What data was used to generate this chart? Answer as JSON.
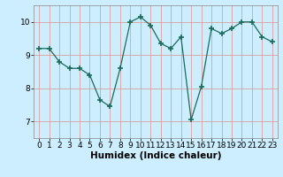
{
  "x": [
    0,
    1,
    2,
    3,
    4,
    5,
    6,
    7,
    8,
    9,
    10,
    11,
    12,
    13,
    14,
    15,
    16,
    17,
    18,
    19,
    20,
    21,
    22,
    23
  ],
  "y": [
    9.2,
    9.2,
    8.8,
    8.6,
    8.6,
    8.4,
    7.65,
    7.45,
    8.6,
    10.0,
    10.15,
    9.9,
    9.35,
    9.2,
    9.55,
    7.05,
    8.05,
    9.8,
    9.65,
    9.8,
    10.0,
    10.0,
    9.55,
    9.4
  ],
  "line_color": "#1a6b5a",
  "marker": "+",
  "marker_size": 4,
  "background_color": "#cceeff",
  "grid_color": "#d8a0a0",
  "xlabel": "Humidex (Indice chaleur)",
  "ylim": [
    6.5,
    10.5
  ],
  "xlim": [
    -0.5,
    23.5
  ],
  "yticks": [
    7,
    8,
    9,
    10
  ],
  "xticks": [
    0,
    1,
    2,
    3,
    4,
    5,
    6,
    7,
    8,
    9,
    10,
    11,
    12,
    13,
    14,
    15,
    16,
    17,
    18,
    19,
    20,
    21,
    22,
    23
  ],
  "tick_labelsize": 6.5,
  "xlabel_fontsize": 7.5,
  "xlabel_fontweight": "bold"
}
